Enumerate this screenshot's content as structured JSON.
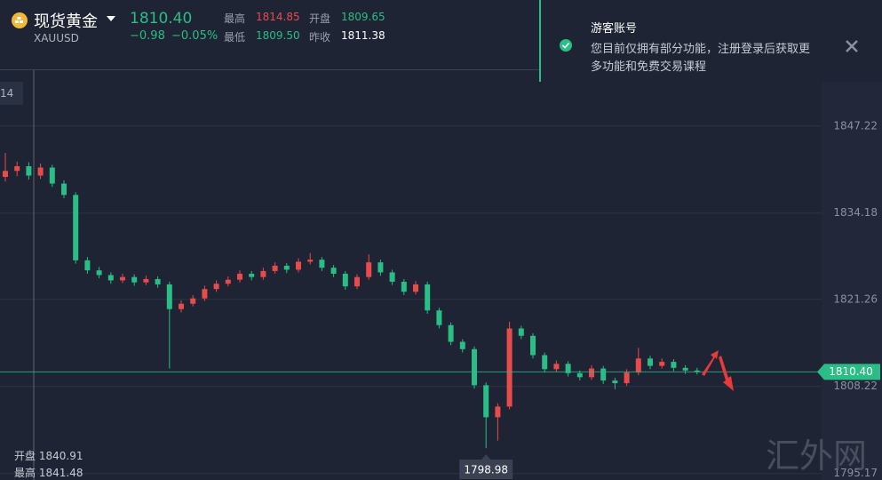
{
  "header": {
    "name": "现货黄金",
    "symbol": "XAUUSD",
    "price": "1810.40",
    "change": "−0.98",
    "change_pct": "−0.05%",
    "stats": [
      {
        "label": "最高",
        "value": "1814.85"
      },
      {
        "label": "开盘",
        "value": "1809.65"
      },
      {
        "label": "最低",
        "value": "1809.50"
      },
      {
        "label": "昨收",
        "value": "1811.38"
      }
    ]
  },
  "notice": {
    "title": "游客账号",
    "lines": [
      "您目前仅拥有部分功能，注册登录后获取更",
      "多功能和免费交易课程"
    ]
  },
  "chart": {
    "type": "candlestick",
    "ylim": [
      1794.2,
      1866.1
    ],
    "yticks": [
      1847.22,
      1834.18,
      1821.26,
      1808.22,
      1795.17
    ],
    "up_color": "#e84b4b",
    "down_color": "#2bbd86",
    "line_color": "#2bbd86",
    "last_price": {
      "value": 1810.4,
      "label": "1810.40"
    },
    "corner_label": "14",
    "crosshair_info": [
      {
        "label": "开盘",
        "value": "1840.91"
      },
      {
        "label": "最高",
        "value": "1841.48"
      }
    ],
    "candles": [
      [
        1839.6,
        1843.2,
        1838.9,
        1840.5
      ],
      [
        1840.5,
        1841.9,
        1839.7,
        1841.2
      ],
      [
        1841.2,
        1841.8,
        1839.2,
        1839.8
      ],
      [
        1839.8,
        1841.6,
        1839.3,
        1841.0
      ],
      [
        1841.0,
        1841.4,
        1838.1,
        1838.6
      ],
      [
        1838.6,
        1839.1,
        1836.4,
        1836.9
      ],
      [
        1836.9,
        1837.3,
        1826.6,
        1827.1
      ],
      [
        1827.1,
        1827.6,
        1825.1,
        1825.6
      ],
      [
        1825.6,
        1826.1,
        1824.4,
        1824.9
      ],
      [
        1824.9,
        1825.3,
        1823.6,
        1824.1
      ],
      [
        1824.1,
        1825.1,
        1823.7,
        1824.6
      ],
      [
        1824.6,
        1825.0,
        1823.3,
        1823.8
      ],
      [
        1823.8,
        1824.8,
        1823.4,
        1824.3
      ],
      [
        1824.3,
        1824.7,
        1823.0,
        1823.5
      ],
      [
        1823.5,
        1823.9,
        1810.9,
        1819.8
      ],
      [
        1819.8,
        1821.1,
        1819.3,
        1820.6
      ],
      [
        1820.6,
        1821.9,
        1820.2,
        1821.4
      ],
      [
        1821.4,
        1823.3,
        1821.0,
        1822.8
      ],
      [
        1822.8,
        1824.1,
        1822.4,
        1823.6
      ],
      [
        1823.6,
        1824.7,
        1823.2,
        1824.2
      ],
      [
        1824.2,
        1825.6,
        1823.8,
        1825.1
      ],
      [
        1825.1,
        1825.5,
        1824.1,
        1824.6
      ],
      [
        1824.6,
        1826.0,
        1824.2,
        1825.5
      ],
      [
        1825.5,
        1826.8,
        1825.1,
        1826.3
      ],
      [
        1826.3,
        1826.7,
        1825.2,
        1825.7
      ],
      [
        1825.7,
        1827.4,
        1825.3,
        1826.9
      ],
      [
        1826.9,
        1828.2,
        1826.5,
        1827.2
      ],
      [
        1827.2,
        1827.6,
        1825.5,
        1826.0
      ],
      [
        1826.0,
        1826.4,
        1824.6,
        1825.1
      ],
      [
        1825.1,
        1825.5,
        1822.7,
        1823.2
      ],
      [
        1823.2,
        1825.0,
        1822.8,
        1824.6
      ],
      [
        1824.6,
        1828.0,
        1824.2,
        1826.8
      ],
      [
        1826.8,
        1827.2,
        1824.8,
        1825.3
      ],
      [
        1825.3,
        1825.7,
        1823.4,
        1823.9
      ],
      [
        1823.9,
        1824.3,
        1821.9,
        1822.4
      ],
      [
        1822.4,
        1824.0,
        1822.0,
        1823.5
      ],
      [
        1823.5,
        1823.9,
        1819.1,
        1819.6
      ],
      [
        1819.6,
        1820.0,
        1816.9,
        1817.4
      ],
      [
        1817.4,
        1817.8,
        1814.4,
        1814.9
      ],
      [
        1814.9,
        1815.3,
        1813.3,
        1813.8
      ],
      [
        1813.8,
        1814.2,
        1807.9,
        1808.4
      ],
      [
        1808.4,
        1808.8,
        1798.98,
        1803.6
      ],
      [
        1803.6,
        1805.7,
        1800.1,
        1805.2
      ],
      [
        1805.2,
        1817.9,
        1804.8,
        1816.9
      ],
      [
        1816.9,
        1817.3,
        1815.3,
        1815.8
      ],
      [
        1815.8,
        1816.2,
        1812.4,
        1812.9
      ],
      [
        1812.9,
        1813.3,
        1810.3,
        1810.8
      ],
      [
        1810.8,
        1812.1,
        1810.4,
        1811.6
      ],
      [
        1811.6,
        1812.0,
        1809.7,
        1810.2
      ],
      [
        1810.2,
        1810.6,
        1809.1,
        1809.6
      ],
      [
        1809.6,
        1811.4,
        1809.2,
        1810.9
      ],
      [
        1810.9,
        1811.3,
        1808.6,
        1809.1
      ],
      [
        1809.1,
        1809.5,
        1807.8,
        1808.7
      ],
      [
        1808.7,
        1810.8,
        1808.3,
        1810.3
      ],
      [
        1810.3,
        1814.0,
        1809.9,
        1812.4
      ],
      [
        1812.4,
        1812.8,
        1810.8,
        1811.3
      ],
      [
        1811.3,
        1812.4,
        1810.9,
        1811.9
      ],
      [
        1811.9,
        1812.3,
        1810.5,
        1811.0
      ],
      [
        1811.0,
        1811.4,
        1810.1,
        1810.6
      ],
      [
        1810.6,
        1811.0,
        1810.0,
        1810.4
      ]
    ]
  },
  "watermark": "汇外网"
}
